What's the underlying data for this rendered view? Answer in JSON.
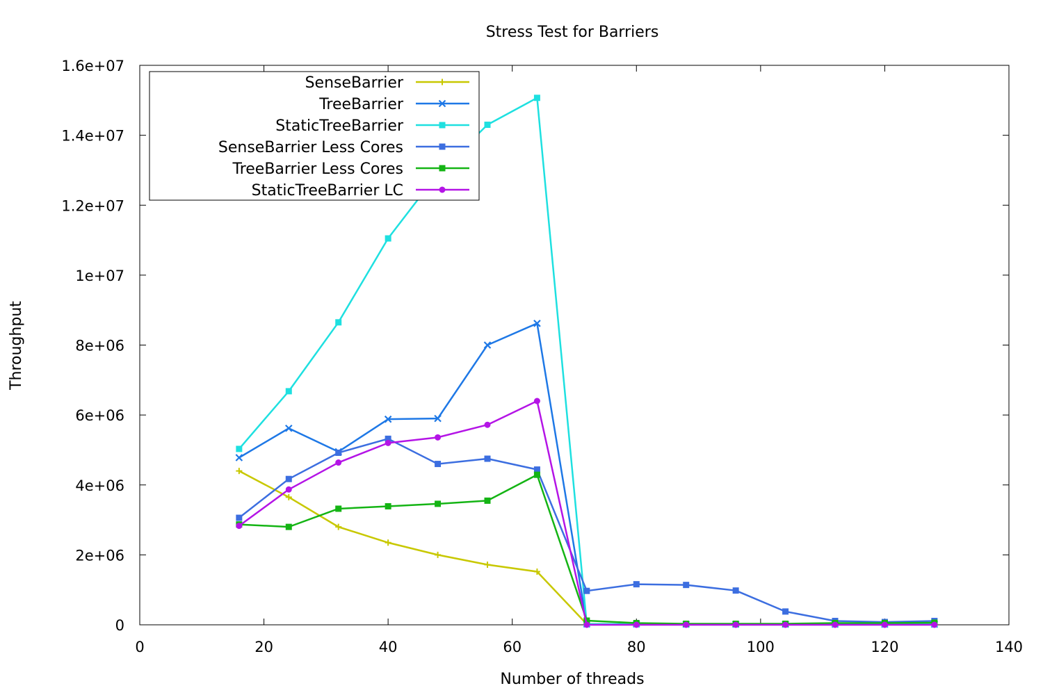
{
  "chart_data": {
    "type": "line",
    "title": "Stress Test for Barriers",
    "xlabel": "Number of threads",
    "ylabel": "Throughput",
    "xlim": [
      0,
      140
    ],
    "ylim": [
      0,
      16000000
    ],
    "xticks": [
      0,
      20,
      40,
      60,
      80,
      100,
      120,
      140
    ],
    "xtick_labels": [
      "0",
      "20",
      "40",
      "60",
      "80",
      "100",
      "120",
      "140"
    ],
    "yticks": [
      0,
      2000000,
      4000000,
      6000000,
      8000000,
      10000000,
      12000000,
      14000000,
      16000000
    ],
    "ytick_labels": [
      "0",
      "2e+06",
      "4e+06",
      "6e+06",
      "8e+06",
      "1e+07",
      "1.2e+07",
      "1.4e+07",
      "1.6e+07"
    ],
    "grid": false,
    "legend_position": "top-left",
    "x": [
      16,
      24,
      32,
      40,
      48,
      56,
      64,
      72,
      80,
      88,
      96,
      104,
      112,
      120,
      128
    ],
    "series": [
      {
        "name": "SenseBarrier",
        "color": "#c8c800",
        "marker": "plus",
        "values": [
          4400000,
          3650000,
          2800000,
          2350000,
          2000000,
          1720000,
          1520000,
          20000,
          20000,
          15000,
          15000,
          15000,
          15000,
          15000,
          15000
        ]
      },
      {
        "name": "TreeBarrier",
        "color": "#1e78e6",
        "marker": "cross",
        "values": [
          4780000,
          5620000,
          4950000,
          5880000,
          5900000,
          8000000,
          8620000,
          20000,
          20000,
          15000,
          15000,
          15000,
          15000,
          15000,
          15000
        ]
      },
      {
        "name": "StaticTreeBarrier",
        "color": "#1ee0e0",
        "marker": "square",
        "values": [
          5030000,
          6680000,
          8650000,
          11050000,
          12900000,
          14300000,
          15070000,
          20000,
          20000,
          15000,
          15000,
          15000,
          15000,
          15000,
          15000
        ]
      },
      {
        "name": "SenseBarrier Less Cores",
        "color": "#3c6ee0",
        "marker": "square",
        "values": [
          3060000,
          4170000,
          4920000,
          5320000,
          4600000,
          4750000,
          4440000,
          970000,
          1160000,
          1140000,
          980000,
          380000,
          110000,
          80000,
          110000
        ]
      },
      {
        "name": "TreeBarrier Less Cores",
        "color": "#14b414",
        "marker": "square",
        "values": [
          2870000,
          2800000,
          3320000,
          3390000,
          3460000,
          3550000,
          4290000,
          120000,
          50000,
          30000,
          30000,
          30000,
          50000,
          50000,
          60000
        ]
      },
      {
        "name": "StaticTreeBarrier LC",
        "color": "#b414e6",
        "marker": "circle",
        "values": [
          2830000,
          3870000,
          4640000,
          5200000,
          5360000,
          5720000,
          6400000,
          0,
          0,
          0,
          0,
          0,
          0,
          0,
          0
        ]
      }
    ]
  }
}
